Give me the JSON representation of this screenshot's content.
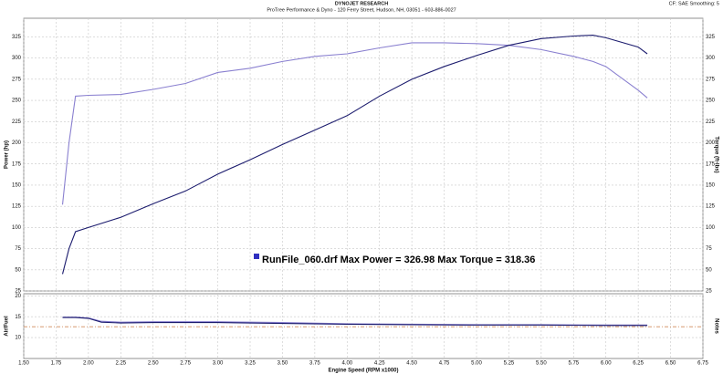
{
  "header": {
    "title": "DYNOJET RESEARCH",
    "subtitle": "ProTree Performance & Dyno - 120 Ferry Street, Hudson, NH, 03051 - 603-886-0027",
    "settings": "CF: SAE  Smoothing: 5"
  },
  "chart_data": [
    {
      "type": "line",
      "y_label": "Power (hp)",
      "y2_label": "Torque (ft-lbs)",
      "annotation": "RunFile_060.drf Max Power = 326.98   Max Torque = 318.36",
      "annotation_color": "#3030c0",
      "x": [
        1.8,
        1.85,
        1.9,
        2.0,
        2.25,
        2.5,
        2.75,
        3.0,
        3.25,
        3.5,
        3.75,
        4.0,
        4.25,
        4.5,
        4.75,
        5.0,
        5.25,
        5.5,
        5.75,
        5.9,
        6.0,
        6.25,
        6.32
      ],
      "series": [
        {
          "color": "#1c1c6e",
          "values": [
            45,
            75,
            95,
            100,
            112,
            128,
            143,
            163,
            180,
            198,
            215,
            232,
            255,
            275,
            290,
            303,
            315,
            323,
            326,
            327,
            324,
            313,
            305
          ]
        },
        {
          "color": "#8a80d0",
          "values": [
            127,
            200,
            255,
            256,
            257,
            263,
            270,
            283,
            288,
            296,
            302,
            305,
            312,
            318,
            318,
            317,
            315,
            310,
            302,
            296,
            290,
            262,
            253
          ]
        }
      ],
      "xlim": [
        1.5,
        6.75
      ],
      "ylim": [
        25,
        347
      ],
      "yticks": [
        25,
        50,
        75,
        100,
        125,
        150,
        175,
        200,
        225,
        250,
        275,
        300,
        325
      ],
      "grid": true
    },
    {
      "type": "line",
      "y_label": "Air/Fuel",
      "y2_label": "Notes",
      "x_label": "Engine Speed (RPM x1000)",
      "x": [
        1.8,
        1.9,
        2.0,
        2.1,
        2.25,
        2.5,
        3.0,
        3.5,
        4.0,
        4.5,
        5.0,
        5.5,
        6.0,
        6.32
      ],
      "series": [
        {
          "color": "#1c1c6e",
          "values": [
            14.8,
            14.8,
            14.6,
            13.7,
            13.5,
            13.6,
            13.6,
            13.4,
            13.2,
            13.1,
            13.0,
            13.0,
            12.9,
            12.9
          ]
        },
        {
          "color": "#8a80d0",
          "values": [
            14.9,
            14.9,
            14.7,
            13.9,
            13.7,
            13.8,
            13.8,
            13.6,
            13.3,
            13.2,
            13.1,
            13.1,
            13.0,
            13.0
          ]
        }
      ],
      "reference": 12.6,
      "reference_color": "#d08a5a",
      "xlim": [
        1.5,
        6.75
      ],
      "ylim": [
        5,
        20.5
      ],
      "yticks": [
        10,
        15,
        20
      ],
      "xticks": [
        {
          "value": 1.5,
          "label": "1.50"
        },
        {
          "value": 1.75,
          "label": "1.75"
        },
        {
          "value": 2,
          "label": "2.00"
        },
        {
          "value": 2.25,
          "label": "2.25"
        },
        {
          "value": 2.5,
          "label": "2.50"
        },
        {
          "value": 2.75,
          "label": "2.75"
        },
        {
          "value": 3,
          "label": "3.00"
        },
        {
          "value": 3.25,
          "label": "3.25"
        },
        {
          "value": 3.5,
          "label": "3.50"
        },
        {
          "value": 3.75,
          "label": "3.75"
        },
        {
          "value": 4,
          "label": "4.00"
        },
        {
          "value": 4.25,
          "label": "4.25"
        },
        {
          "value": 4.5,
          "label": "4.50"
        },
        {
          "value": 4.75,
          "label": "4.75"
        },
        {
          "value": 5,
          "label": "5.00"
        },
        {
          "value": 5.25,
          "label": "5.25"
        },
        {
          "value": 5.5,
          "label": "5.50"
        },
        {
          "value": 5.75,
          "label": "5.75"
        },
        {
          "value": 6,
          "label": "6.00"
        },
        {
          "value": 6.25,
          "label": "6.25"
        },
        {
          "value": 6.5,
          "label": "6.50"
        },
        {
          "value": 6.75,
          "label": "6.75"
        }
      ],
      "grid": true
    }
  ]
}
